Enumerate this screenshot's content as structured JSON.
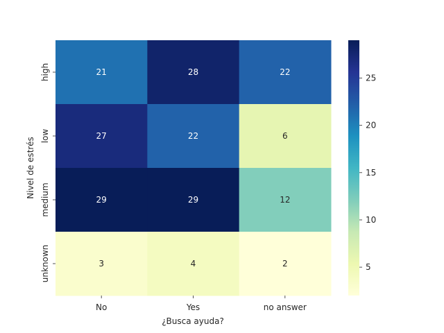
{
  "chart_data": {
    "type": "heatmap",
    "xlabel": "¿Busca ayuda?",
    "ylabel": "Nivel de estrés",
    "x_categories": [
      "No",
      "Yes",
      "no answer"
    ],
    "y_categories": [
      "high",
      "low",
      "medium",
      "unknown"
    ],
    "values": [
      [
        21,
        28,
        22
      ],
      [
        27,
        22,
        6
      ],
      [
        29,
        29,
        12
      ],
      [
        3,
        4,
        2
      ]
    ],
    "colorbar": {
      "min": 2,
      "max": 29,
      "ticks": [
        5,
        10,
        15,
        20,
        25
      ],
      "colormap": "YlGnBu"
    },
    "annotations": true
  }
}
